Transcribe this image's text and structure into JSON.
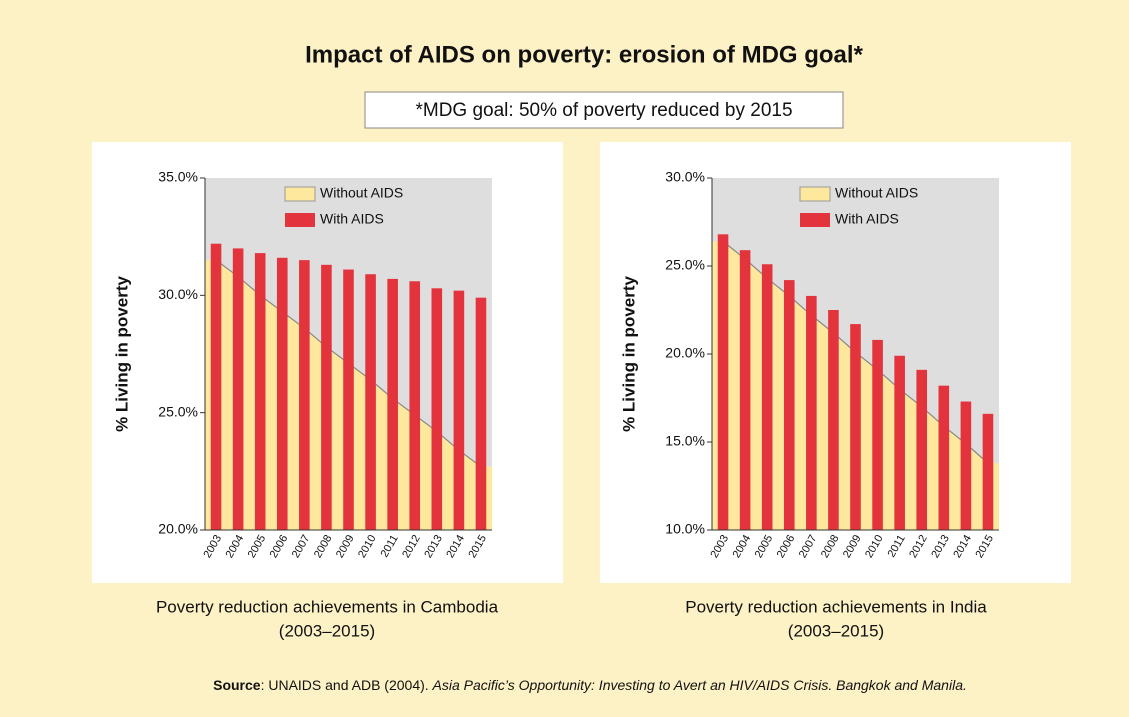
{
  "header": {
    "title": "Impact of AIDS on poverty: erosion of MDG goal*",
    "note": "*MDG goal: 50% of poverty reduced by 2015"
  },
  "source": {
    "label": "Source",
    "text": ": UNAIDS and ADB (2004). ",
    "italic": "Asia Pacific’s Opportunity: Investing to Avert an HIV/AIDS Crisis. Bangkok and Manila."
  },
  "chart_data": [
    {
      "type": "bar",
      "title": "Poverty reduction achievements in Cambodia",
      "subtitle": "(2003–2015)",
      "ylabel": "% Living in poverty",
      "categories": [
        "2003",
        "2004",
        "2005",
        "2006",
        "2007",
        "2008",
        "2009",
        "2010",
        "2011",
        "2012",
        "2013",
        "2014",
        "2015"
      ],
      "series": [
        {
          "name": "Without AIDS",
          "type": "area",
          "color": "#fde89e",
          "values": [
            31.5,
            30.8,
            30.0,
            29.3,
            28.6,
            27.8,
            27.1,
            26.4,
            25.6,
            24.9,
            24.2,
            23.4,
            22.7
          ]
        },
        {
          "name": "With AIDS",
          "type": "bar",
          "color": "#e3343d",
          "values": [
            32.2,
            32.0,
            31.8,
            31.6,
            31.5,
            31.3,
            31.1,
            30.9,
            30.7,
            30.6,
            30.3,
            30.2,
            29.9
          ]
        }
      ],
      "ylim": [
        20,
        35
      ],
      "yticks": [
        {
          "value": 20,
          "label": "20.0%"
        },
        {
          "value": 25,
          "label": "25.0%"
        },
        {
          "value": 30,
          "label": "30.0%"
        },
        {
          "value": 35,
          "label": "35.0%"
        }
      ]
    },
    {
      "type": "bar",
      "title": "Poverty reduction achievements in India",
      "subtitle": "(2003–2015)",
      "ylabel": "% Living in poverty",
      "categories": [
        "2003",
        "2004",
        "2005",
        "2006",
        "2007",
        "2008",
        "2009",
        "2010",
        "2011",
        "2012",
        "2013",
        "2014",
        "2015"
      ],
      "series": [
        {
          "name": "Without AIDS",
          "type": "area",
          "color": "#fde89e",
          "values": [
            26.4,
            25.4,
            24.3,
            23.3,
            22.2,
            21.2,
            20.1,
            19.1,
            18.0,
            17.0,
            15.9,
            14.9,
            13.8
          ]
        },
        {
          "name": "With AIDS",
          "type": "bar",
          "color": "#e3343d",
          "values": [
            26.8,
            25.9,
            25.1,
            24.2,
            23.3,
            22.5,
            21.7,
            20.8,
            19.9,
            19.1,
            18.2,
            17.3,
            16.6
          ]
        }
      ],
      "ylim": [
        10,
        30
      ],
      "yticks": [
        {
          "value": 10,
          "label": "10.0%"
        },
        {
          "value": 15,
          "label": "15.0%"
        },
        {
          "value": 20,
          "label": "20.0%"
        },
        {
          "value": 25,
          "label": "25.0%"
        },
        {
          "value": 30,
          "label": "30.0%"
        }
      ]
    }
  ]
}
